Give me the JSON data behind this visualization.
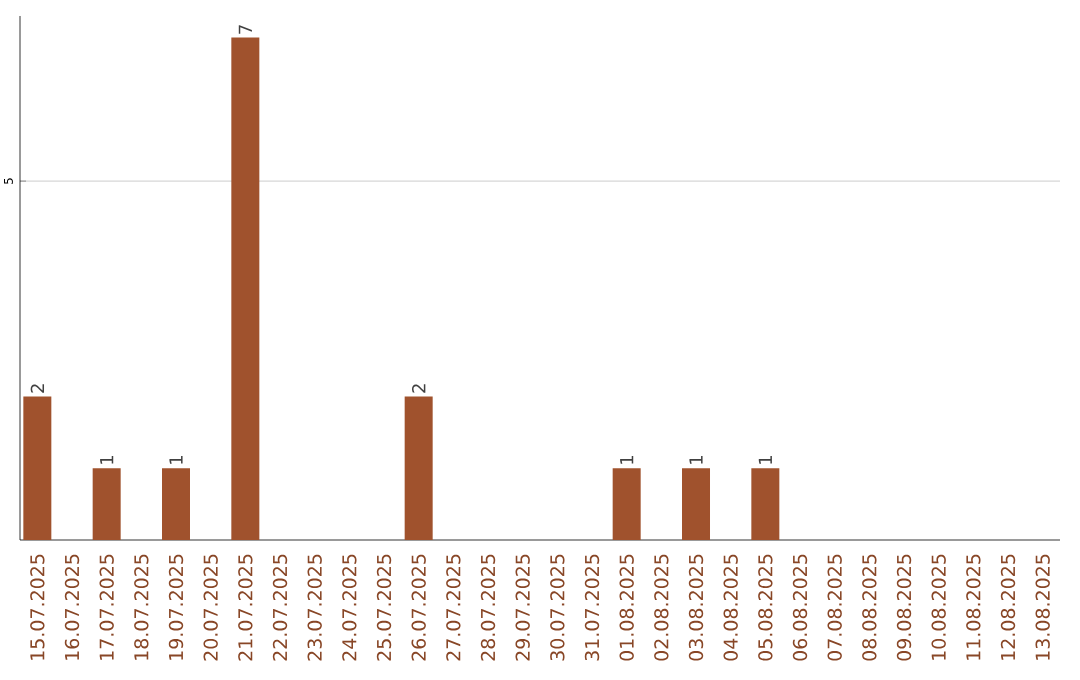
{
  "chart_data": {
    "type": "bar",
    "color": "#a0522d",
    "categories": [
      "15.07.2025",
      "16.07.2025",
      "17.07.2025",
      "18.07.2025",
      "19.07.2025",
      "20.07.2025",
      "21.07.2025",
      "22.07.2025",
      "23.07.2025",
      "24.07.2025",
      "25.07.2025",
      "26.07.2025",
      "27.07.2025",
      "28.07.2025",
      "29.07.2025",
      "30.07.2025",
      "31.07.2025",
      "01.08.2025",
      "02.08.2025",
      "03.08.2025",
      "04.08.2025",
      "05.08.2025",
      "06.08.2025",
      "07.08.2025",
      "08.08.2025",
      "09.08.2025",
      "10.08.2025",
      "11.08.2025",
      "12.08.2025",
      "13.08.2025"
    ],
    "values": [
      2,
      0,
      1,
      0,
      1,
      0,
      7,
      0,
      0,
      0,
      0,
      2,
      0,
      0,
      0,
      0,
      0,
      1,
      0,
      1,
      0,
      1,
      0,
      0,
      0,
      0,
      0,
      0,
      0,
      0
    ],
    "value_labels": [
      "2",
      null,
      "1",
      null,
      "1",
      null,
      "7",
      null,
      null,
      null,
      null,
      "2",
      null,
      null,
      null,
      null,
      null,
      "1",
      null,
      "1",
      null,
      "1",
      null,
      null,
      null,
      null,
      null,
      null,
      null,
      null
    ],
    "ylim": [
      0,
      7.3
    ],
    "yticks": [
      5
    ],
    "grid": "y"
  }
}
